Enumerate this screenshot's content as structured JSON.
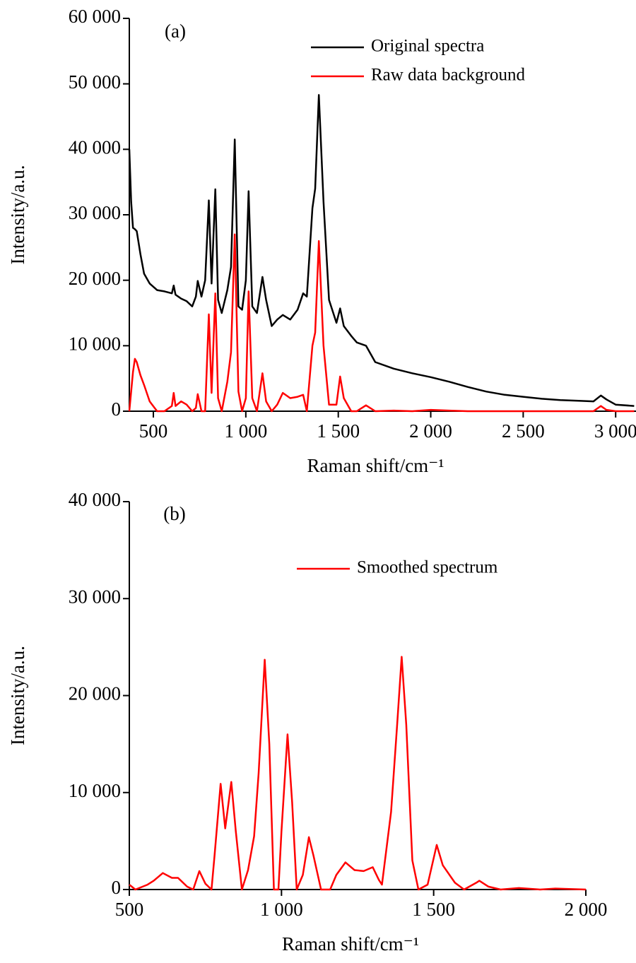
{
  "chart_data": [
    {
      "type": "line",
      "annotation": "(a)",
      "xlabel": "Raman shift/cm⁻¹",
      "ylabel": "Intensity/a.u.",
      "legend": "upper right",
      "xlim": [
        370,
        3110
      ],
      "ylim": [
        0,
        60000
      ],
      "xticks": [
        500,
        {
          "value": 1000,
          "label": "1 000"
        },
        {
          "value": 1500,
          "label": "1 500"
        },
        {
          "value": 2000,
          "label": "2 000"
        },
        {
          "value": 2500,
          "label": "2 500"
        },
        {
          "value": 3000,
          "label": "3 000"
        }
      ],
      "yticks": [
        0,
        {
          "value": 10000,
          "label": "10 000"
        },
        {
          "value": 20000,
          "label": "20 000"
        },
        {
          "value": 30000,
          "label": "30 000"
        },
        {
          "value": 40000,
          "label": "40 000"
        },
        {
          "value": 50000,
          "label": "50 000"
        },
        {
          "value": 60000,
          "label": "60 000"
        }
      ],
      "x": [
        370,
        380,
        390,
        400,
        410,
        430,
        450,
        480,
        520,
        560,
        600,
        610,
        620,
        650,
        680,
        710,
        730,
        740,
        760,
        780,
        800,
        815,
        835,
        850,
        870,
        900,
        920,
        940,
        960,
        980,
        1000,
        1015,
        1035,
        1060,
        1090,
        1110,
        1140,
        1170,
        1200,
        1240,
        1280,
        1310,
        1330,
        1360,
        1375,
        1395,
        1420,
        1450,
        1490,
        1510,
        1530,
        1570,
        1600,
        1650,
        1700,
        1800,
        1900,
        2000,
        2100,
        2200,
        2300,
        2400,
        2500,
        2600,
        2700,
        2800,
        2880,
        2920,
        2950,
        3000,
        3100
      ],
      "series": [
        {
          "name": "Original spectra",
          "color": "#000000",
          "values": [
            40000,
            32000,
            28000,
            27800,
            27500,
            24000,
            21000,
            19500,
            18500,
            18300,
            18000,
            19200,
            17800,
            17200,
            16800,
            16000,
            17500,
            19900,
            17500,
            20000,
            32200,
            19500,
            33900,
            17000,
            15000,
            18500,
            22000,
            41500,
            16000,
            15500,
            20000,
            33600,
            16000,
            15000,
            20500,
            17000,
            13000,
            14000,
            14700,
            14000,
            15500,
            18000,
            17500,
            31000,
            34000,
            48300,
            32000,
            17000,
            13500,
            15700,
            13000,
            11500,
            10500,
            10000,
            7500,
            6500,
            5800,
            5200,
            4500,
            3700,
            3000,
            2500,
            2200,
            1900,
            1700,
            1600,
            1500,
            2400,
            1800,
            1000,
            800
          ]
        },
        {
          "name": "Raw data background",
          "color": "#ff0000",
          "values": [
            0,
            3000,
            6000,
            8000,
            7500,
            5500,
            4000,
            1500,
            0,
            0,
            800,
            2800,
            800,
            1500,
            1000,
            0,
            500,
            2600,
            0,
            0,
            14800,
            2800,
            18000,
            2000,
            0,
            4500,
            9000,
            27000,
            3000,
            0,
            2000,
            18300,
            2000,
            0,
            5800,
            1500,
            0,
            1000,
            2800,
            2000,
            2200,
            2500,
            0,
            10000,
            12000,
            26000,
            10000,
            1000,
            1000,
            5300,
            2000,
            0,
            0,
            900,
            0,
            100,
            0,
            200,
            100,
            0,
            0,
            0,
            0,
            0,
            0,
            0,
            0,
            800,
            200,
            0,
            0
          ]
        }
      ]
    },
    {
      "type": "line",
      "annotation": "(b)",
      "xlabel": "Raman shift/cm⁻¹",
      "ylabel": "Intensity/a.u.",
      "legend": "upper center",
      "xlim": [
        500,
        2000
      ],
      "ylim": [
        0,
        40000
      ],
      "xticks": [
        500,
        {
          "value": 1000,
          "label": "1 000"
        },
        {
          "value": 1500,
          "label": "1 500"
        },
        {
          "value": 2000,
          "label": "2 000"
        }
      ],
      "yticks": [
        0,
        {
          "value": 10000,
          "label": "10 000"
        },
        {
          "value": 20000,
          "label": "20 000"
        },
        {
          "value": 30000,
          "label": "30 000"
        },
        {
          "value": 40000,
          "label": "40 000"
        }
      ],
      "x": [
        500,
        520,
        560,
        580,
        610,
        640,
        660,
        690,
        710,
        730,
        750,
        770,
        780,
        800,
        815,
        835,
        850,
        870,
        890,
        910,
        925,
        945,
        960,
        975,
        990,
        1000,
        1020,
        1035,
        1050,
        1070,
        1090,
        1105,
        1130,
        1160,
        1180,
        1210,
        1240,
        1270,
        1300,
        1320,
        1330,
        1360,
        1380,
        1395,
        1410,
        1430,
        1450,
        1480,
        1510,
        1530,
        1570,
        1600,
        1640,
        1650,
        1680,
        1720,
        1780,
        1850,
        1900,
        2000
      ],
      "series": [
        {
          "name": "Smoothed spectrum",
          "color": "#ff0000",
          "values": [
            500,
            0,
            500,
            900,
            1700,
            1200,
            1200,
            300,
            0,
            1900,
            600,
            0,
            3500,
            10900,
            6300,
            11100,
            6000,
            0,
            2000,
            5500,
            12000,
            23700,
            15000,
            0,
            0,
            6000,
            16000,
            9000,
            0,
            1500,
            5400,
            3500,
            0,
            0,
            1500,
            2800,
            2000,
            1900,
            2300,
            1000,
            500,
            8000,
            17000,
            24000,
            17000,
            3000,
            0,
            500,
            4600,
            2500,
            700,
            0,
            700,
            900,
            300,
            0,
            150,
            0,
            100,
            0
          ]
        }
      ]
    }
  ]
}
